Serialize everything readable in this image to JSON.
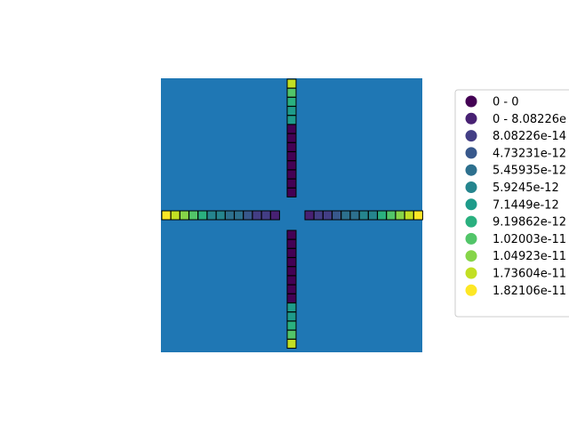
{
  "chart_data": {
    "type": "heatmap",
    "background_color": "#1f77b4",
    "cell_border_color": "#000000",
    "grid": false,
    "legend_placement": "right",
    "legend": [
      {
        "label": "0 - 0",
        "color": "#440154"
      },
      {
        "label": "0 - 8.08226e",
        "color": "#482173"
      },
      {
        "label": "8.08226e-14",
        "color": "#433e85"
      },
      {
        "label": "4.73231e-12",
        "color": "#38588c"
      },
      {
        "label": "5.45935e-12",
        "color": "#2d708e"
      },
      {
        "label": "5.9245e-12",
        "color": "#25858e"
      },
      {
        "label": "7.1449e-12",
        "color": "#1e9b8a"
      },
      {
        "label": "9.19862e-12",
        "color": "#2ab07f"
      },
      {
        "label": "1.02003e-11",
        "color": "#52c569"
      },
      {
        "label": "1.04923e-11",
        "color": "#86d549"
      },
      {
        "label": "1.73604e-11",
        "color": "#c2df23"
      },
      {
        "label": "1.82106e-11",
        "color": "#fde725"
      }
    ],
    "arms": {
      "top": [
        10,
        8,
        7,
        6,
        6,
        0,
        0,
        0,
        0,
        0,
        0,
        0,
        0
      ],
      "bottom": [
        0,
        0,
        0,
        0,
        0,
        0,
        0,
        0,
        6,
        6,
        7,
        8,
        10
      ],
      "left": [
        11,
        10,
        9,
        8,
        7,
        5,
        5,
        4,
        4,
        3,
        2,
        2,
        1
      ],
      "right": [
        1,
        2,
        2,
        3,
        4,
        4,
        5,
        5,
        7,
        8,
        9,
        10,
        11
      ]
    }
  }
}
